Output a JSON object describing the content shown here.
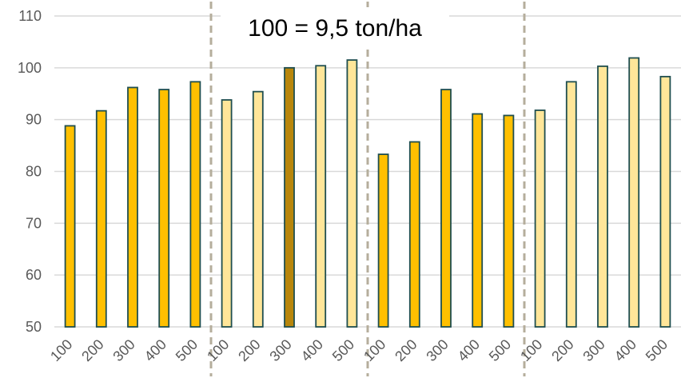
{
  "chart_data": {
    "type": "bar",
    "title": "100 = 9,5 ton/ha",
    "xlabel": "",
    "ylabel": "",
    "ylim": [
      50,
      110
    ],
    "yticks": [
      50,
      60,
      70,
      80,
      90,
      100,
      110
    ],
    "grid": true,
    "categories": [
      "100",
      "200",
      "300",
      "400",
      "500",
      "100",
      "200",
      "300",
      "400",
      "500",
      "100",
      "200",
      "300",
      "400",
      "500",
      "100",
      "200",
      "300",
      "400",
      "500"
    ],
    "values": [
      88.8,
      91.7,
      96.2,
      95.8,
      97.3,
      93.8,
      95.4,
      100.0,
      100.4,
      101.5,
      83.3,
      85.7,
      95.8,
      91.1,
      90.8,
      91.8,
      97.3,
      100.3,
      101.9,
      98.3
    ],
    "bar_colors": [
      "#ffc000",
      "#ffc000",
      "#ffc000",
      "#ffc000",
      "#ffc000",
      "#ffe699",
      "#ffe699",
      "#b8860b",
      "#ffe699",
      "#ffe699",
      "#ffc000",
      "#ffc000",
      "#ffc000",
      "#ffc000",
      "#ffc000",
      "#ffe699",
      "#ffe699",
      "#ffe699",
      "#ffe699",
      "#ffe699"
    ],
    "group_dividers_after_index": [
      4,
      9,
      14
    ]
  }
}
